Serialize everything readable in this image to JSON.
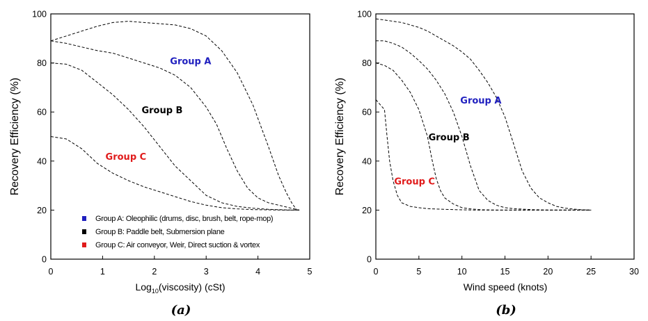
{
  "chart_data": [
    {
      "type": "line",
      "panel_label": "(a)",
      "xlabel_prefix": "Log",
      "xlabel_sub": "10",
      "xlabel_suffix": "(viscosity) (cSt)",
      "ylabel": "Recovery Efficiency (%)",
      "xlim": [
        0,
        5
      ],
      "ylim": [
        0,
        100
      ],
      "xticks": [
        "0",
        "1",
        "2",
        "3",
        "4",
        "5"
      ],
      "yticks": [
        "0",
        "20",
        "40",
        "60",
        "80",
        "100"
      ],
      "colors": {
        "A": "#1f1fbf",
        "B": "#000000",
        "C": "#e01b1b"
      },
      "group_labels": [
        {
          "text": "Group A",
          "group": "A",
          "x": 2.7,
          "y": 79.5
        },
        {
          "text": "Group B",
          "group": "B",
          "x": 2.15,
          "y": 59.5
        },
        {
          "text": "Group C",
          "group": "C",
          "x": 1.45,
          "y": 40.5
        }
      ],
      "legend": [
        {
          "group": "A",
          "text": "Group A: Oleophilic (drums, disc, brush, belt, rope-mop)"
        },
        {
          "group": "B",
          "text": "Group B: Paddle belt, Submersion plane"
        },
        {
          "group": "C",
          "text": "Group C: Air conveyor, Weir, Direct suction & vortex"
        }
      ],
      "series": [
        {
          "group": "A",
          "x": [
            0,
            0.3,
            0.6,
            0.9,
            1.2,
            1.5,
            1.8,
            2.1,
            2.4,
            2.7,
            3.0,
            3.3,
            3.6,
            3.9,
            4.2,
            4.4,
            4.55,
            4.65,
            4.75
          ],
          "y": [
            89,
            91,
            93,
            95,
            96.5,
            97,
            96.5,
            96,
            95.5,
            94,
            91,
            85,
            76,
            63,
            46,
            34,
            27,
            23,
            20
          ]
        },
        {
          "group": "A",
          "x": [
            0,
            0.3,
            0.6,
            0.9,
            1.2,
            1.5,
            1.8,
            2.1,
            2.4,
            2.7,
            3.0,
            3.2,
            3.4,
            3.6,
            3.8,
            4.0,
            4.2,
            4.4,
            4.6,
            4.8
          ],
          "y": [
            89,
            88,
            86.5,
            85,
            84,
            82,
            80,
            78,
            75,
            70,
            62,
            55,
            45,
            36,
            29,
            25,
            23,
            22,
            21,
            20
          ]
        },
        {
          "group": "B",
          "x": [
            0,
            0.3,
            0.6,
            0.9,
            1.2,
            1.5,
            1.8,
            2.1,
            2.4,
            2.7,
            3.0,
            3.3,
            3.6,
            3.9,
            4.2,
            4.5,
            4.8
          ],
          "y": [
            80,
            79.5,
            77,
            72,
            67,
            61,
            54,
            46,
            38,
            32,
            26,
            23,
            21.5,
            20.8,
            20.3,
            20.1,
            20
          ]
        },
        {
          "group": "C",
          "x": [
            0,
            0.3,
            0.6,
            0.9,
            1.2,
            1.5,
            1.8,
            2.1,
            2.4,
            2.7,
            3.0,
            3.3,
            3.6,
            3.9,
            4.2,
            4.5,
            4.8
          ],
          "y": [
            50,
            49,
            45,
            39,
            35,
            32,
            29.5,
            27.5,
            25.5,
            23.5,
            22,
            21,
            20.5,
            20.2,
            20.1,
            20,
            20
          ]
        }
      ]
    },
    {
      "type": "line",
      "panel_label": "(b)",
      "xlabel": "Wind speed (knots)",
      "ylabel": "Recovery Efficiency (%)",
      "xlim": [
        0,
        30
      ],
      "ylim": [
        0,
        100
      ],
      "xticks": [
        "0",
        "5",
        "10",
        "15",
        "20",
        "25",
        "30"
      ],
      "yticks": [
        "0",
        "20",
        "40",
        "60",
        "80",
        "100"
      ],
      "group_labels": [
        {
          "text": "Group A",
          "group": "A",
          "x": 12.2,
          "y": 63.5
        },
        {
          "text": "Group B",
          "group": "B",
          "x": 8.5,
          "y": 48.5
        },
        {
          "text": "Group C",
          "group": "C",
          "x": 4.5,
          "y": 30.5
        }
      ],
      "series": [
        {
          "group": "A",
          "x": [
            0,
            1,
            2,
            3,
            4,
            5,
            6,
            7,
            8,
            9,
            10,
            11,
            12,
            13,
            14,
            15,
            16,
            17,
            18,
            19,
            20,
            21,
            22,
            23,
            24,
            25
          ],
          "y": [
            98,
            97.5,
            97,
            96.5,
            95.5,
            94.5,
            93,
            91,
            89,
            87,
            84.5,
            81.5,
            77,
            72,
            66,
            58,
            47,
            36,
            29,
            25,
            23,
            21.5,
            20.8,
            20.4,
            20.1,
            20
          ]
        },
        {
          "group": "B",
          "x": [
            0,
            1,
            2,
            3,
            4,
            5,
            6,
            7,
            8,
            9,
            10,
            11,
            12,
            13,
            14,
            15,
            16,
            17,
            18,
            19,
            20,
            21,
            22,
            23,
            24,
            25
          ],
          "y": [
            89,
            89,
            88,
            86.5,
            84,
            81,
            77.5,
            73,
            67.5,
            60,
            50,
            38,
            28,
            24,
            22,
            21,
            20.6,
            20.4,
            20.2,
            20.1,
            20,
            20,
            20,
            20,
            20,
            20
          ]
        },
        {
          "group": "C",
          "x": [
            0,
            1,
            2,
            3,
            4,
            5,
            6,
            6.5,
            7,
            7.5,
            8,
            9,
            10,
            11,
            12,
            14,
            16,
            18,
            20,
            22,
            25
          ],
          "y": [
            80,
            79,
            77,
            73,
            68,
            61,
            50,
            41,
            33,
            28,
            25,
            22.5,
            21,
            20.5,
            20.2,
            20,
            20,
            20,
            20,
            20,
            20
          ]
        },
        {
          "group": "D",
          "x": [
            0,
            0.5,
            1,
            1.3,
            1.6,
            2,
            2.5,
            3,
            4,
            5,
            6,
            8,
            10,
            12,
            15,
            18,
            20,
            25
          ],
          "y": [
            65,
            63,
            61,
            50,
            40,
            32,
            26,
            23,
            21.5,
            21,
            20.6,
            20.3,
            20.1,
            20,
            20,
            20,
            20,
            20
          ]
        }
      ]
    }
  ]
}
